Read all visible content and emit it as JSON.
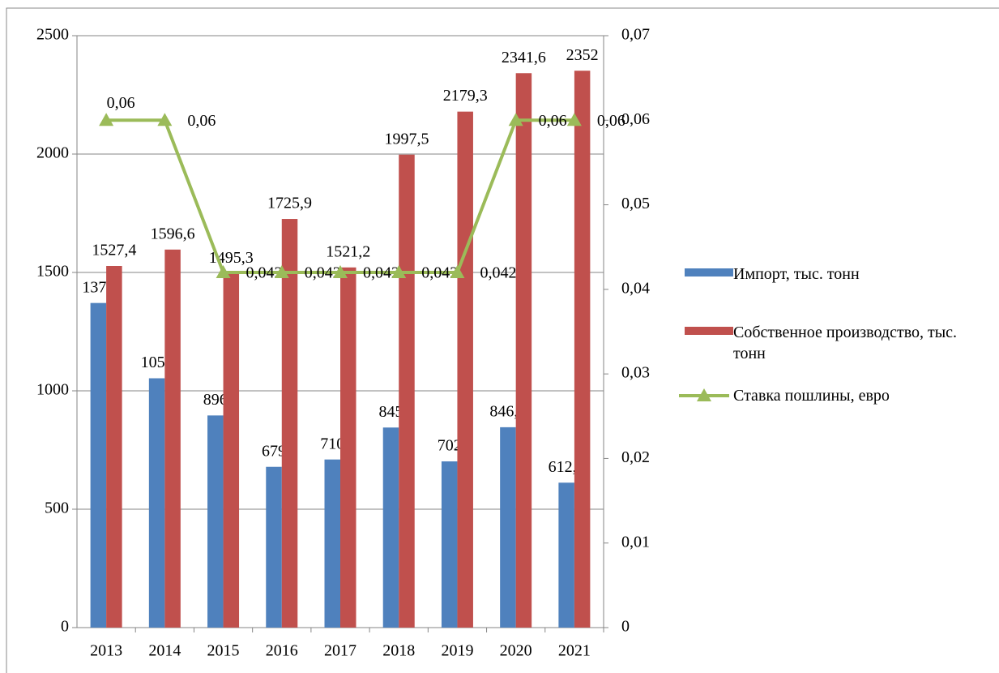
{
  "chart_data": {
    "type": "bar",
    "categories": [
      "2013",
      "2014",
      "2015",
      "2016",
      "2017",
      "2018",
      "2019",
      "2020",
      "2021"
    ],
    "series": [
      {
        "name": "Импорт, тыс. тонн",
        "color": "#4f81bd",
        "values": [
          1371,
          1053,
          896,
          679,
          710,
          845,
          702,
          846.3,
          612.1
        ],
        "value_labels": [
          "1371",
          "1053",
          "896",
          "679",
          "710",
          "845",
          "702",
          "846,3",
          "612,1"
        ]
      },
      {
        "name": "Собственное производство, тыс. тонн",
        "color": "#c0504d",
        "values": [
          1527.4,
          1596.6,
          1495.3,
          1725.9,
          1521.2,
          1997.5,
          2179.3,
          2341.6,
          2352
        ],
        "value_labels": [
          "1527,4",
          "1596,6",
          "1495,3",
          "1725,9",
          "1521,2",
          "1997,5",
          "2179,3",
          "2341,6",
          "2352"
        ]
      },
      {
        "name": "Ставка пошлины, евро",
        "color": "#9bbb59",
        "type": "line",
        "axis": "y2",
        "values": [
          0.06,
          0.06,
          0.042,
          0.042,
          0.042,
          0.042,
          0.042,
          0.06,
          0.06
        ],
        "value_labels": [
          "0,06",
          "0,06",
          "0,042",
          "0,042",
          "0,042",
          "0,042",
          "0,042",
          "0,06",
          "0,06"
        ]
      }
    ],
    "ylim": [
      0,
      2500
    ],
    "yticks": [
      0,
      500,
      1000,
      1500,
      2000,
      2500
    ],
    "y2lim": [
      0,
      0.07
    ],
    "y2ticks": [
      0,
      {
        "value": 0.01,
        "label": "0,01"
      },
      {
        "value": 0.02,
        "label": "0,02"
      },
      {
        "value": 0.03,
        "label": "0,03"
      },
      {
        "value": 0.04,
        "label": "0,04"
      },
      {
        "value": 0.05,
        "label": "0,05"
      },
      {
        "value": 0.06,
        "label": "0,06"
      },
      {
        "value": 0.07,
        "label": "0,07"
      }
    ],
    "grid": true,
    "legend": "right"
  }
}
